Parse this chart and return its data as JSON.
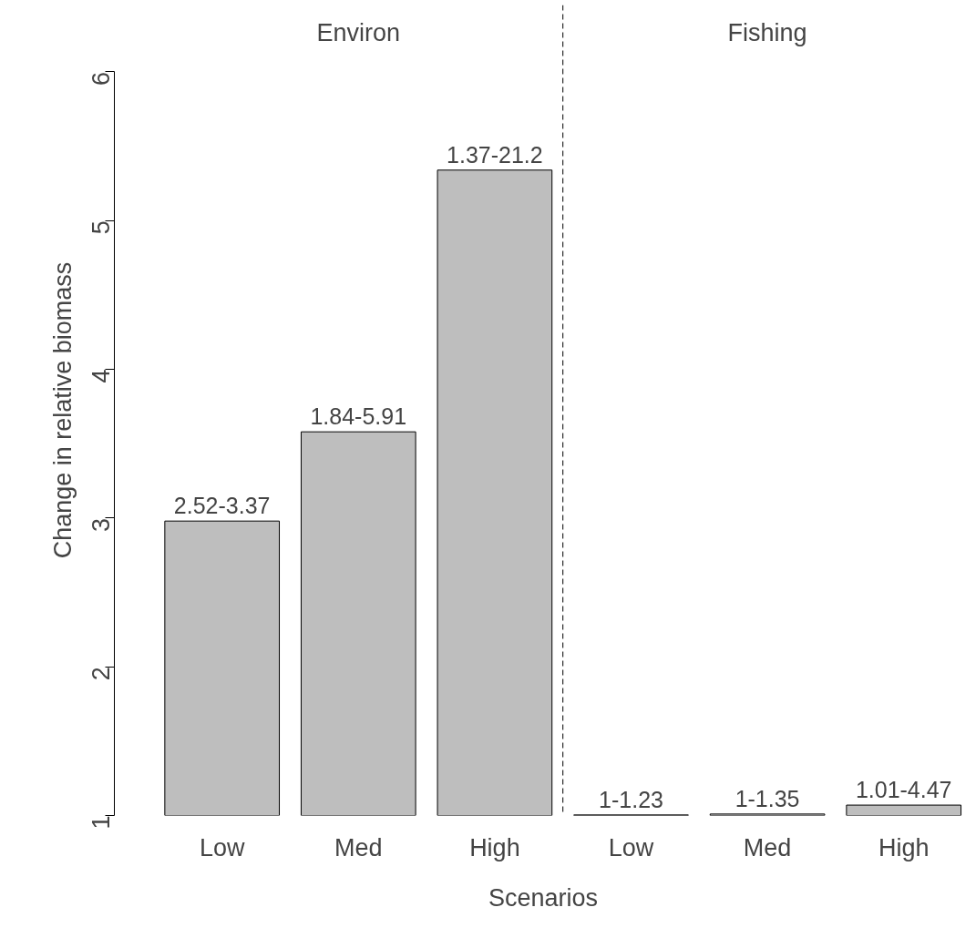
{
  "chart_data": {
    "type": "bar",
    "xlabel": "Scenarios",
    "ylabel": "Change in relative biomass",
    "categories": [
      "Low",
      "Med",
      "High",
      "Low",
      "Med",
      "High"
    ],
    "values": [
      2.98,
      3.58,
      5.34,
      1.004,
      1.01,
      1.07
    ],
    "color": "#bebebe",
    "value_labels": [
      "2.52-3.37",
      "1.84-5.91",
      "1.37-21.2",
      "1-1.23",
      "1-1.35",
      "1.01-4.47"
    ],
    "ylim": [
      1,
      6
    ],
    "yticks": [
      1,
      2,
      3,
      4,
      5,
      6
    ],
    "grid": false,
    "annotations": [
      "Environ",
      "Fishing"
    ]
  }
}
